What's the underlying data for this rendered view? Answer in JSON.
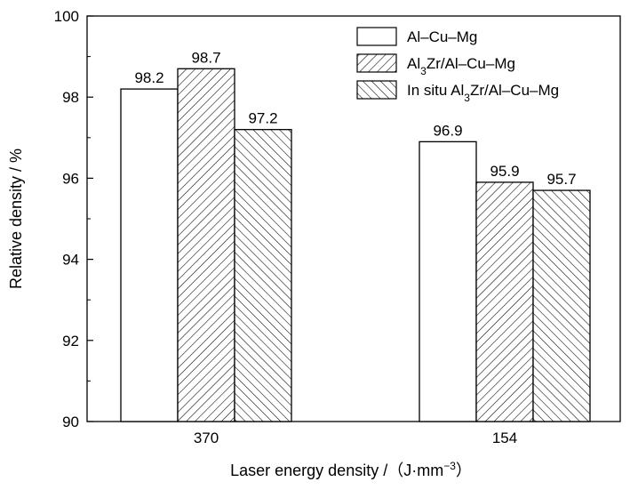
{
  "chart_data": {
    "type": "bar",
    "xlabel": "Laser energy density /（J·mm⁻³）",
    "ylabel": "Relative density / %",
    "ylim": [
      90,
      100
    ],
    "yticks": [
      90,
      92,
      94,
      96,
      98,
      100
    ],
    "categories": [
      "370",
      "154"
    ],
    "series": [
      {
        "name": "Al–Cu–Mg",
        "name_parts": [
          "Al–Cu–Mg"
        ],
        "values": [
          98.2,
          96.9
        ],
        "labels": [
          "98.2",
          "96.9"
        ],
        "pattern": "none"
      },
      {
        "name": "Al3Zr/Al–Cu–Mg",
        "name_parts": [
          "Al",
          "3",
          "Zr/Al–Cu–Mg"
        ],
        "values": [
          98.7,
          95.9
        ],
        "labels": [
          "98.7",
          "95.9"
        ],
        "pattern": "forward-hatch"
      },
      {
        "name": "In situ Al3Zr/Al–Cu–Mg",
        "name_parts": [
          "In situ Al",
          "3",
          "Zr/Al–Cu–Mg"
        ],
        "values": [
          97.2,
          95.7
        ],
        "labels": [
          "97.2",
          "95.7"
        ],
        "pattern": "back-hatch"
      }
    ],
    "legend_position": "top-right",
    "grid": false,
    "colors": {
      "bar_fill": "#ffffff",
      "stroke": "#000000"
    }
  }
}
